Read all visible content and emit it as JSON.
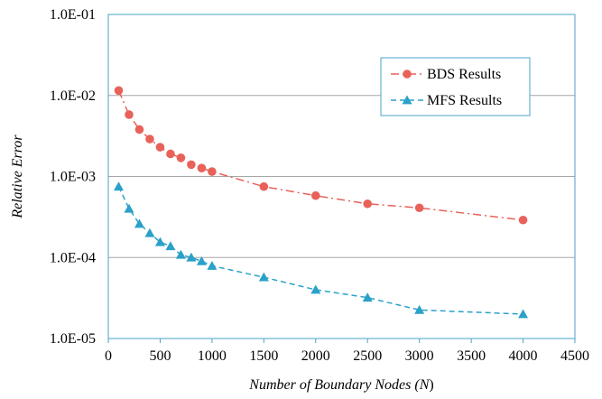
{
  "chart_data": {
    "type": "line",
    "title": "",
    "xlabel_parts": [
      "Number of Boundary Nodes (",
      "N",
      ")"
    ],
    "ylabel": "Relative Error",
    "xlim": [
      0,
      4500
    ],
    "ylim": [
      1e-05,
      0.1
    ],
    "yscale": "log",
    "grid": "horizontal major",
    "legend_position": "top-right",
    "x_ticks": [
      0,
      500,
      1000,
      1500,
      2000,
      2500,
      3000,
      3500,
      4000,
      4500
    ],
    "x_tick_labels": [
      "0",
      "500",
      "1000",
      "1500",
      "2000",
      "2500",
      "3000",
      "3500",
      "4000",
      "4500"
    ],
    "y_ticks": [
      1e-05,
      0.0001,
      0.001,
      0.01,
      0.1
    ],
    "y_tick_labels": [
      "1.0E-05",
      "1.0E-04",
      "1.0E-03",
      "1.0E-02",
      "1.0E-01"
    ],
    "series": [
      {
        "name": "BDS Results",
        "color": "#e8625a",
        "marker": "circle",
        "line_style": "dash-dot",
        "x": [
          100,
          200,
          300,
          400,
          500,
          600,
          700,
          800,
          900,
          1000,
          1500,
          2000,
          2500,
          3000,
          4000
        ],
        "y": [
          0.0115,
          0.0058,
          0.0038,
          0.0029,
          0.0023,
          0.0019,
          0.0017,
          0.0014,
          0.00127,
          0.00115,
          0.00075,
          0.00058,
          0.00046,
          0.00041,
          0.00029
        ]
      },
      {
        "name": "MFS Results",
        "color": "#2aa1c8",
        "marker": "triangle",
        "line_style": "dashed",
        "x": [
          100,
          200,
          300,
          400,
          500,
          600,
          700,
          800,
          900,
          1000,
          1500,
          2000,
          2500,
          3000,
          4000
        ],
        "y": [
          0.00075,
          0.0004,
          0.00026,
          0.0002,
          0.000155,
          0.000138,
          0.000108,
          0.0001,
          9e-05,
          7.9e-05,
          5.7e-05,
          4e-05,
          3.2e-05,
          2.25e-05,
          2e-05
        ]
      }
    ]
  }
}
